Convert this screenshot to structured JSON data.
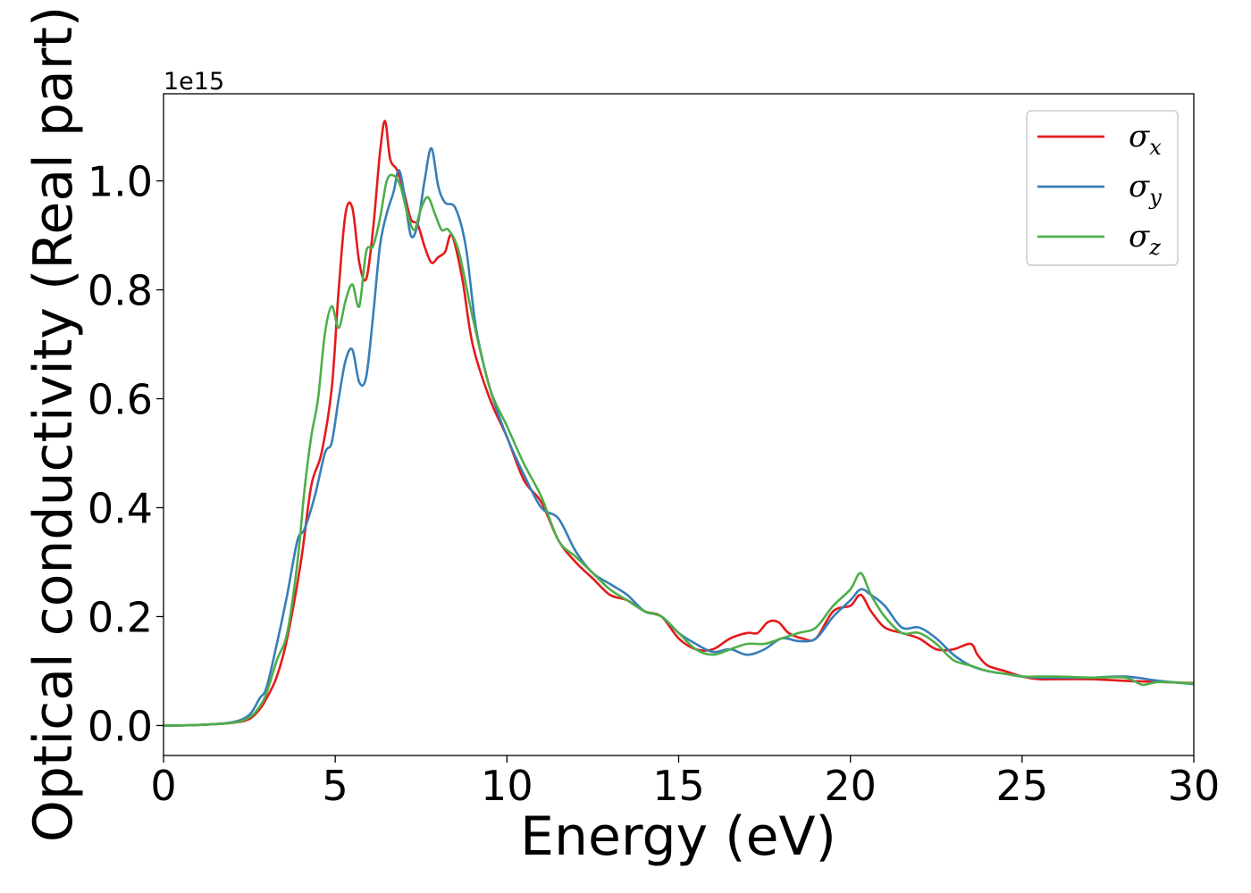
{
  "chart_data": {
    "type": "line",
    "xlabel": "Energy (eV)",
    "ylabel": "Optical conductivity (Real part)",
    "y_offset_label": "1e15",
    "xlim": [
      0,
      30
    ],
    "ylim": [
      -0.055,
      1.16
    ],
    "xticks": [
      0,
      5,
      10,
      15,
      20,
      25,
      30
    ],
    "xtick_labels": [
      "0",
      "5",
      "10",
      "15",
      "20",
      "25",
      "30"
    ],
    "yticks": [
      0.0,
      0.2,
      0.4,
      0.6,
      0.8,
      1.0
    ],
    "ytick_labels": [
      "0.0",
      "0.2",
      "0.4",
      "0.6",
      "0.8",
      "1.0"
    ],
    "grid": false,
    "legend_position": "top-right",
    "series": [
      {
        "name": "σx",
        "symbol": "σ",
        "subscript": "x",
        "color": "#e41a1c",
        "x": [
          0,
          1,
          2,
          2.5,
          2.8,
          3.0,
          3.3,
          3.6,
          4.0,
          4.3,
          4.6,
          4.9,
          5.1,
          5.3,
          5.5,
          5.7,
          5.9,
          6.1,
          6.3,
          6.45,
          6.6,
          6.8,
          7.0,
          7.2,
          7.4,
          7.6,
          7.8,
          8.0,
          8.2,
          8.4,
          8.7,
          9.0,
          9.5,
          10.0,
          10.5,
          11.0,
          11.5,
          12.0,
          12.5,
          13.0,
          13.5,
          14.0,
          14.5,
          15.0,
          15.5,
          16.0,
          16.5,
          17.0,
          17.3,
          17.6,
          17.9,
          18.2,
          18.6,
          19.0,
          19.5,
          20.0,
          20.3,
          20.6,
          21.0,
          21.5,
          22.0,
          22.5,
          23.0,
          23.5,
          23.7,
          24.0,
          24.5,
          25.0,
          25.5,
          26.0,
          27.0,
          28.0,
          29.0,
          30.0
        ],
        "y": [
          0.0,
          0.001,
          0.005,
          0.012,
          0.03,
          0.05,
          0.09,
          0.16,
          0.3,
          0.44,
          0.5,
          0.62,
          0.8,
          0.94,
          0.95,
          0.85,
          0.82,
          0.91,
          1.05,
          1.11,
          1.04,
          1.02,
          0.98,
          0.93,
          0.92,
          0.88,
          0.85,
          0.86,
          0.87,
          0.9,
          0.82,
          0.7,
          0.6,
          0.53,
          0.45,
          0.41,
          0.34,
          0.3,
          0.27,
          0.24,
          0.23,
          0.21,
          0.2,
          0.16,
          0.14,
          0.14,
          0.16,
          0.17,
          0.17,
          0.19,
          0.19,
          0.17,
          0.16,
          0.16,
          0.21,
          0.22,
          0.24,
          0.21,
          0.18,
          0.17,
          0.16,
          0.14,
          0.14,
          0.15,
          0.13,
          0.11,
          0.1,
          0.09,
          0.085,
          0.085,
          0.085,
          0.082,
          0.08,
          0.078
        ]
      },
      {
        "name": "σy",
        "symbol": "σ",
        "subscript": "y",
        "color": "#377eb8",
        "x": [
          0,
          1,
          2,
          2.5,
          2.8,
          3.0,
          3.3,
          3.6,
          3.9,
          4.1,
          4.4,
          4.7,
          4.9,
          5.1,
          5.3,
          5.5,
          5.7,
          5.9,
          6.1,
          6.3,
          6.5,
          6.7,
          6.85,
          7.0,
          7.2,
          7.4,
          7.6,
          7.8,
          8.0,
          8.2,
          8.5,
          8.8,
          9.1,
          9.5,
          10.0,
          10.5,
          11.0,
          11.5,
          12.0,
          12.5,
          13.0,
          13.5,
          14.0,
          14.5,
          15.0,
          15.5,
          16.0,
          16.5,
          17.0,
          17.5,
          18.0,
          18.5,
          19.0,
          19.5,
          20.0,
          20.3,
          20.6,
          21.0,
          21.5,
          22.0,
          22.5,
          23.0,
          23.5,
          24.0,
          24.5,
          25.0,
          25.5,
          26.0,
          27.0,
          28.0,
          29.0,
          30.0
        ],
        "y": [
          0.0,
          0.001,
          0.006,
          0.02,
          0.05,
          0.07,
          0.15,
          0.24,
          0.34,
          0.36,
          0.42,
          0.5,
          0.52,
          0.6,
          0.67,
          0.69,
          0.63,
          0.64,
          0.75,
          0.88,
          0.94,
          0.98,
          1.02,
          0.98,
          0.9,
          0.92,
          1.0,
          1.06,
          0.99,
          0.96,
          0.95,
          0.88,
          0.73,
          0.62,
          0.53,
          0.46,
          0.4,
          0.38,
          0.32,
          0.28,
          0.26,
          0.24,
          0.21,
          0.2,
          0.17,
          0.15,
          0.135,
          0.14,
          0.13,
          0.14,
          0.16,
          0.155,
          0.16,
          0.2,
          0.23,
          0.25,
          0.24,
          0.22,
          0.18,
          0.18,
          0.16,
          0.13,
          0.11,
          0.1,
          0.095,
          0.09,
          0.088,
          0.088,
          0.088,
          0.09,
          0.082,
          0.076
        ]
      },
      {
        "name": "σz",
        "symbol": "σ",
        "subscript": "z",
        "color": "#4daf4a",
        "x": [
          0,
          1,
          2,
          2.5,
          2.8,
          3.0,
          3.3,
          3.6,
          3.9,
          4.1,
          4.3,
          4.5,
          4.7,
          4.9,
          5.1,
          5.3,
          5.5,
          5.7,
          5.9,
          6.1,
          6.3,
          6.5,
          6.7,
          6.9,
          7.1,
          7.3,
          7.5,
          7.7,
          7.9,
          8.1,
          8.3,
          8.6,
          9.0,
          9.5,
          10.0,
          10.5,
          11.0,
          11.5,
          12.0,
          12.5,
          13.0,
          13.5,
          14.0,
          14.5,
          15.0,
          15.5,
          16.0,
          16.5,
          17.0,
          17.5,
          18.0,
          18.5,
          19.0,
          19.5,
          20.0,
          20.3,
          20.6,
          21.0,
          21.5,
          22.0,
          22.5,
          23.0,
          23.5,
          24.0,
          24.5,
          25.0,
          25.5,
          26.0,
          27.0,
          28.0,
          28.5,
          29.0,
          30.0
        ],
        "y": [
          0.0,
          0.001,
          0.005,
          0.015,
          0.035,
          0.06,
          0.12,
          0.17,
          0.3,
          0.43,
          0.53,
          0.6,
          0.72,
          0.77,
          0.73,
          0.78,
          0.81,
          0.77,
          0.87,
          0.88,
          0.93,
          1.0,
          1.01,
          0.99,
          0.94,
          0.91,
          0.95,
          0.97,
          0.94,
          0.91,
          0.91,
          0.87,
          0.75,
          0.62,
          0.55,
          0.48,
          0.42,
          0.34,
          0.31,
          0.28,
          0.25,
          0.23,
          0.21,
          0.2,
          0.17,
          0.14,
          0.13,
          0.14,
          0.15,
          0.15,
          0.16,
          0.17,
          0.18,
          0.22,
          0.25,
          0.28,
          0.24,
          0.2,
          0.17,
          0.17,
          0.15,
          0.12,
          0.11,
          0.1,
          0.095,
          0.09,
          0.09,
          0.09,
          0.088,
          0.088,
          0.075,
          0.08,
          0.077
        ]
      }
    ]
  }
}
